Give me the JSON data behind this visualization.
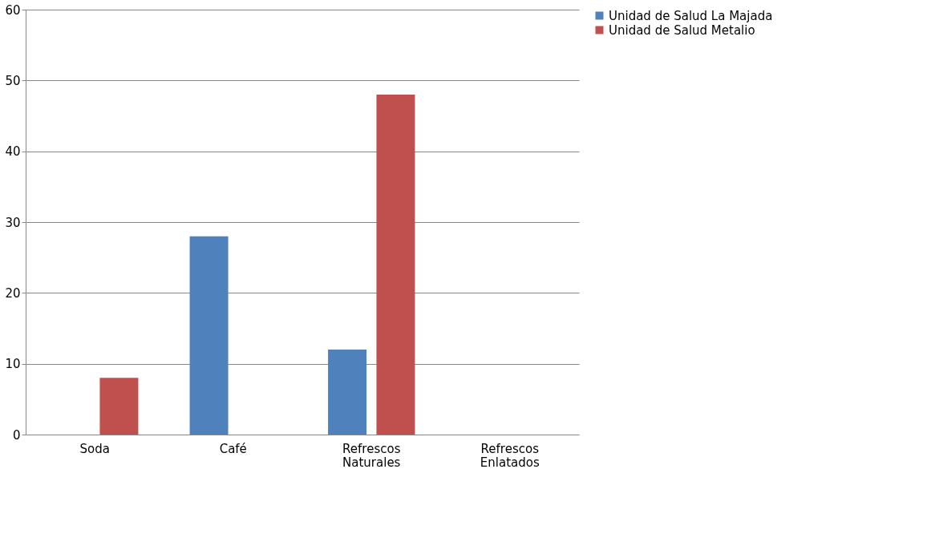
{
  "chart_data": {
    "type": "bar",
    "categories": [
      "Soda",
      "Café",
      "Refrescos Naturales",
      "Refrescos Enlatados"
    ],
    "series": [
      {
        "name": "Unidad de Salud La Majada",
        "color": "#4f81bd",
        "values": [
          0,
          28,
          12,
          0
        ]
      },
      {
        "name": "Unidad de Salud Metalio",
        "color": "#c0504d",
        "values": [
          8,
          0,
          48,
          0
        ]
      }
    ],
    "ylim": [
      0,
      60
    ],
    "yticks": [
      0,
      10,
      20,
      30,
      40,
      50,
      60
    ],
    "grid": "y",
    "legend": "right"
  }
}
